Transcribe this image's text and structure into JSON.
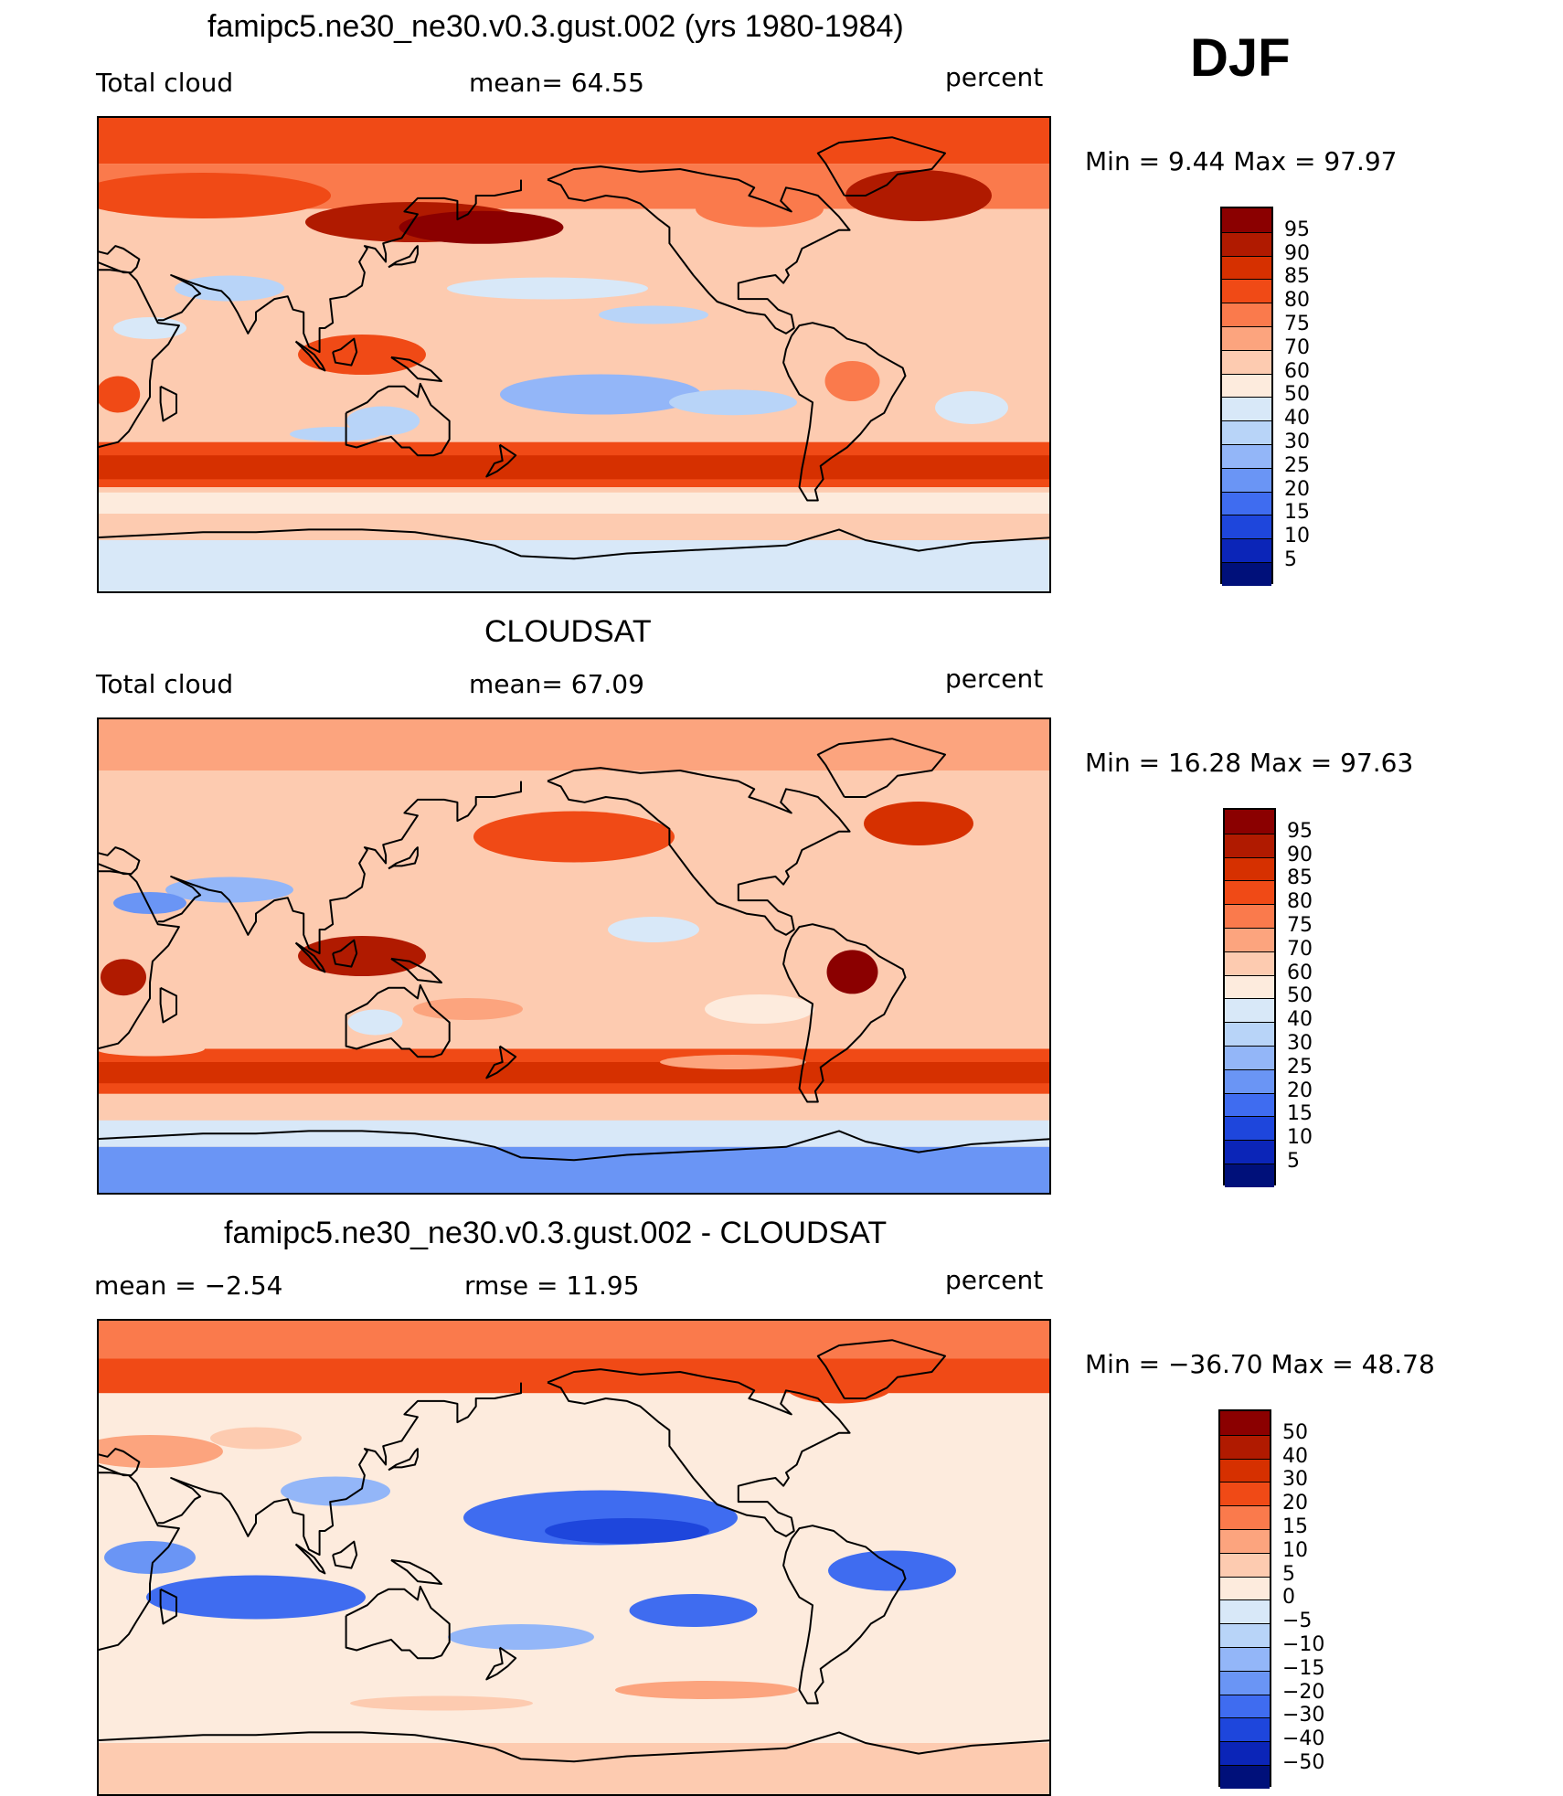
{
  "season": "DJF",
  "panels": [
    {
      "title": "famipc5.ne30_ne30.v0.3.gust.002 (yrs 1980-1984)",
      "left_label": "Total cloud",
      "center_label": "mean=   64.55",
      "right_label": "percent",
      "minmax": "Min =    9.44  Max =    97.97"
    },
    {
      "title": "CLOUDSAT",
      "left_label": "Total cloud",
      "center_label": "mean=   67.09",
      "right_label": "percent",
      "minmax": "Min =   16.28  Max =   97.63"
    },
    {
      "title": "famipc5.ne30_ne30.v0.3.gust.002 - CLOUDSAT",
      "left_label": "mean =    −2.54",
      "center_label": "rmse =    11.95",
      "right_label": "percent",
      "minmax": "Min = −36.70  Max =    48.78"
    }
  ],
  "chart_data": [
    {
      "type": "heatmap",
      "title": "famipc5.ne30_ne30.v0.3.gust.002 (yrs 1980-1984)",
      "variable": "Total cloud",
      "units": "percent",
      "mean": 64.55,
      "min": 9.44,
      "max": 97.97,
      "colorbar_ticks": [
        "95",
        "90",
        "85",
        "80",
        "75",
        "70",
        "60",
        "50",
        "40",
        "30",
        "25",
        "20",
        "15",
        "10",
        "5"
      ],
      "colors": [
        "#8b0000",
        "#b01a00",
        "#d63000",
        "#f04a16",
        "#fa7a4c",
        "#fca47e",
        "#fdcbb0",
        "#fdebdd",
        "#d8e8f8",
        "#b8d4f8",
        "#93b6f8",
        "#6a95f5",
        "#3f6cf0",
        "#1e46dc",
        "#0b25b8",
        "#00107a"
      ]
    },
    {
      "type": "heatmap",
      "title": "CLOUDSAT",
      "variable": "Total cloud",
      "units": "percent",
      "mean": 67.09,
      "min": 16.28,
      "max": 97.63,
      "colorbar_ticks": [
        "95",
        "90",
        "85",
        "80",
        "75",
        "70",
        "60",
        "50",
        "40",
        "30",
        "25",
        "20",
        "15",
        "10",
        "5"
      ],
      "colors": [
        "#8b0000",
        "#b01a00",
        "#d63000",
        "#f04a16",
        "#fa7a4c",
        "#fca47e",
        "#fdcbb0",
        "#fdebdd",
        "#d8e8f8",
        "#b8d4f8",
        "#93b6f8",
        "#6a95f5",
        "#3f6cf0",
        "#1e46dc",
        "#0b25b8",
        "#00107a"
      ]
    },
    {
      "type": "heatmap",
      "title": "famipc5.ne30_ne30.v0.3.gust.002 - CLOUDSAT",
      "units": "percent",
      "mean": -2.54,
      "rmse": 11.95,
      "min": -36.7,
      "max": 48.78,
      "colorbar_ticks": [
        "50",
        "40",
        "30",
        "20",
        "15",
        "10",
        "5",
        "0",
        "−5",
        "−10",
        "−15",
        "−20",
        "−30",
        "−40",
        "−50"
      ],
      "colors": [
        "#8b0000",
        "#b01a00",
        "#d63000",
        "#f04a16",
        "#fa7a4c",
        "#fca47e",
        "#fdcbb0",
        "#fdebdd",
        "#d8e8f8",
        "#b8d4f8",
        "#93b6f8",
        "#6a95f5",
        "#3f6cf0",
        "#1e46dc",
        "#0b25b8",
        "#00107a"
      ]
    }
  ]
}
